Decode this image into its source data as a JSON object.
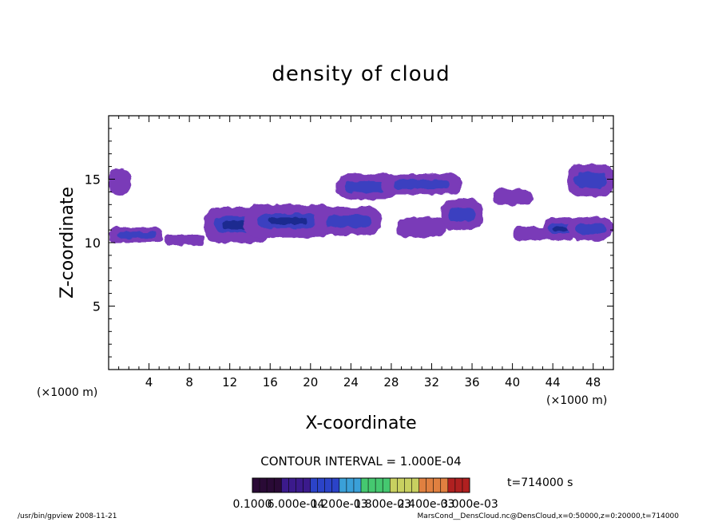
{
  "chart_data": {
    "type": "heatmap",
    "title": "density of cloud",
    "xlabel": "X-coordinate",
    "ylabel": "Z-coordinate",
    "x_unit": "(×1000 m)",
    "xlim": [
      0,
      50
    ],
    "ylim": [
      0,
      20
    ],
    "x_ticks": [
      4,
      8,
      12,
      16,
      20,
      24,
      28,
      32,
      36,
      40,
      44,
      48
    ],
    "y_ticks": [
      5,
      10,
      15
    ],
    "contour_interval": "CONTOUR INTERVAL = 1.000E-04",
    "time_label": "t=714000 s",
    "colorbar_labels": [
      "0.1000",
      "6.000e-04",
      "1.200e-03",
      "1.800e-03",
      "2.400e-03",
      "3.000e-03"
    ],
    "colormap": [
      "#2a0a36",
      "#3b1a8c",
      "#2b43c8",
      "#3aa0d8",
      "#45c870",
      "#c8d060",
      "#e08040",
      "#b02020"
    ],
    "cloud_fill": "#7a3ab8",
    "cloud_dense": "#3a40c0",
    "cloud_core": "#1a2a90",
    "cloud_blobs": [
      {
        "x0": 0.0,
        "x1": 2.2,
        "z0": 13.7,
        "z1": 15.9,
        "density": 0.0004
      },
      {
        "x0": 0.0,
        "x1": 5.5,
        "z0": 10.0,
        "z1": 11.2,
        "density": 0.0005
      },
      {
        "x0": 5.5,
        "x1": 9.5,
        "z0": 9.8,
        "z1": 10.6,
        "density": 0.0003
      },
      {
        "x0": 9.5,
        "x1": 16.0,
        "z0": 10.0,
        "z1": 12.8,
        "density": 0.0009
      },
      {
        "x0": 13.5,
        "x1": 22.0,
        "z0": 10.4,
        "z1": 13.0,
        "density": 0.001
      },
      {
        "x0": 20.5,
        "x1": 27.0,
        "z0": 10.6,
        "z1": 12.8,
        "density": 0.0006
      },
      {
        "x0": 22.5,
        "x1": 28.5,
        "z0": 13.4,
        "z1": 15.4,
        "density": 0.0006
      },
      {
        "x0": 27.0,
        "x1": 35.0,
        "z0": 13.8,
        "z1": 15.4,
        "density": 0.0005
      },
      {
        "x0": 28.5,
        "x1": 33.5,
        "z0": 10.4,
        "z1": 12.0,
        "density": 0.0004
      },
      {
        "x0": 33.0,
        "x1": 37.0,
        "z0": 11.0,
        "z1": 13.4,
        "density": 0.0005
      },
      {
        "x0": 38.0,
        "x1": 42.0,
        "z0": 13.0,
        "z1": 14.2,
        "density": 0.0003
      },
      {
        "x0": 40.0,
        "x1": 44.0,
        "z0": 10.2,
        "z1": 11.2,
        "density": 0.0004
      },
      {
        "x0": 43.0,
        "x1": 46.5,
        "z0": 10.2,
        "z1": 12.0,
        "density": 0.0008
      },
      {
        "x0": 45.5,
        "x1": 50.0,
        "z0": 10.2,
        "z1": 12.0,
        "density": 0.0007
      },
      {
        "x0": 45.5,
        "x1": 50.0,
        "z0": 13.6,
        "z1": 16.2,
        "density": 0.0005
      }
    ]
  },
  "footer": {
    "left": "/usr/bin/gpview   2008-11-21",
    "right": "MarsCond__DensCloud.nc@DensCloud,x=0:50000,z=0:20000,t=714000"
  }
}
